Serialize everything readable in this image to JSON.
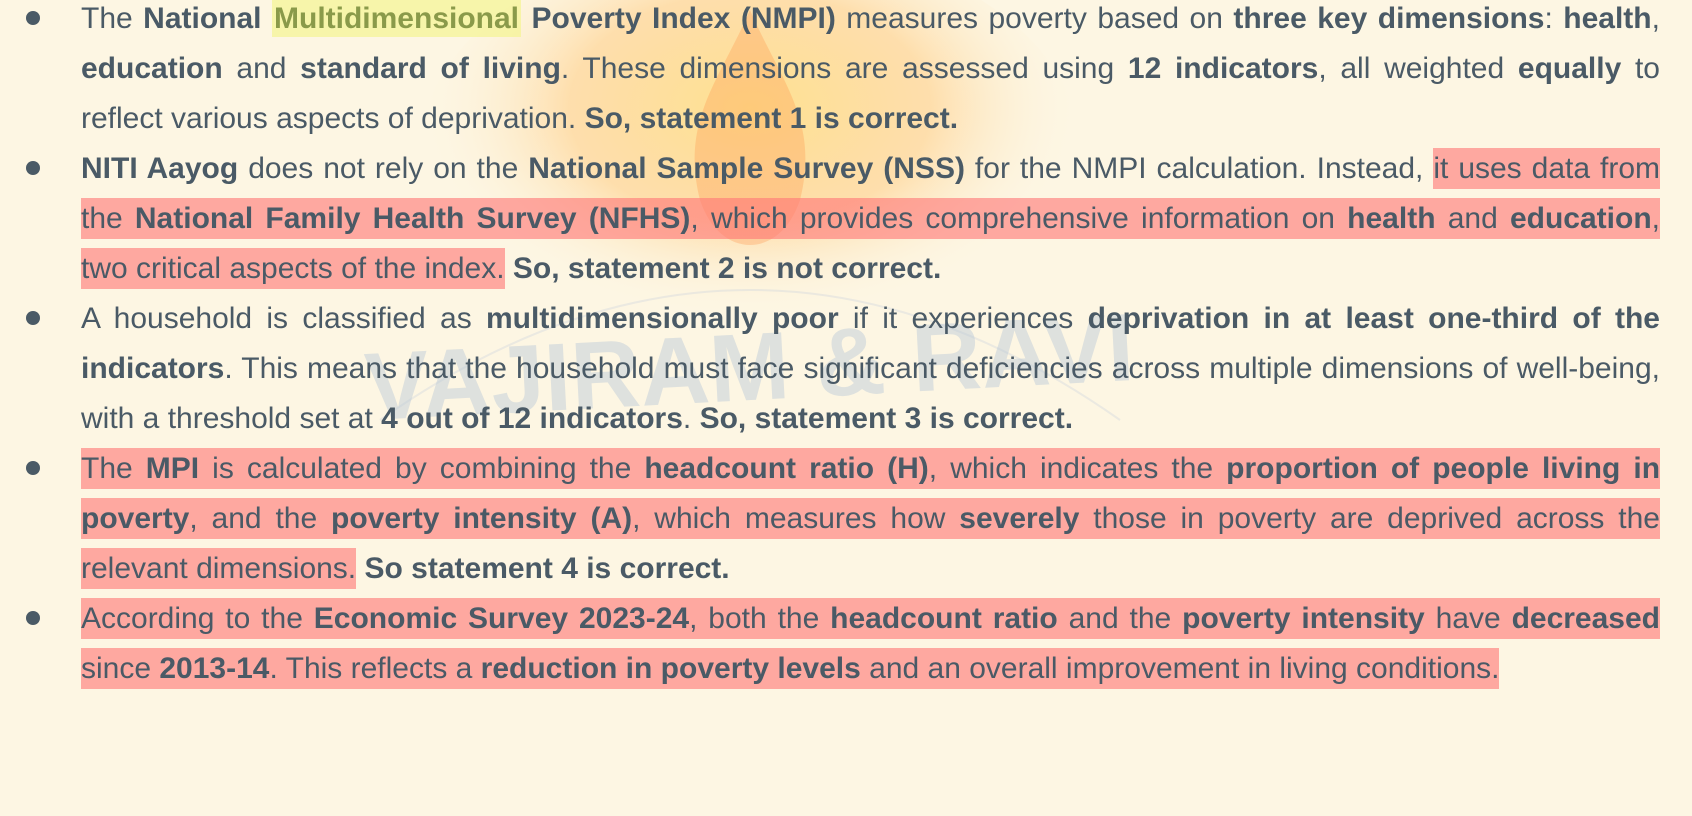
{
  "watermark": {
    "text": "VAJIRAM & RAVI",
    "color": "#b9c8d8"
  },
  "colors": {
    "background": "#fdf6e3",
    "text": "#4a5a66",
    "highlight_red": "#ff7878",
    "highlight_yellow": "#f5f58c"
  },
  "bullets": [
    {
      "segments": [
        {
          "t": "The ",
          "b": false,
          "hl": null
        },
        {
          "t": "National ",
          "b": true,
          "hl": null
        },
        {
          "t": "Multidimensional",
          "b": true,
          "hl": "yellow"
        },
        {
          "t": " Poverty Index (NMPI)",
          "b": true,
          "hl": null
        },
        {
          "t": " measures poverty based on ",
          "b": false,
          "hl": null
        },
        {
          "t": "three key dimensions",
          "b": true,
          "hl": null
        },
        {
          "t": ": ",
          "b": false,
          "hl": null
        },
        {
          "t": "health",
          "b": true,
          "hl": null
        },
        {
          "t": ", ",
          "b": false,
          "hl": null
        },
        {
          "t": "education",
          "b": true,
          "hl": null
        },
        {
          "t": " and ",
          "b": false,
          "hl": null
        },
        {
          "t": "standard of living",
          "b": true,
          "hl": null
        },
        {
          "t": ". These dimensions are assessed using ",
          "b": false,
          "hl": null
        },
        {
          "t": "12 indicators",
          "b": true,
          "hl": null
        },
        {
          "t": ", all weighted ",
          "b": false,
          "hl": null
        },
        {
          "t": "equally",
          "b": true,
          "hl": null
        },
        {
          "t": " to reflect various aspects of deprivation. ",
          "b": false,
          "hl": null
        },
        {
          "t": "So, statement 1 is correct.",
          "b": true,
          "hl": null
        }
      ]
    },
    {
      "segments": [
        {
          "t": "NITI Aayog",
          "b": true,
          "hl": null
        },
        {
          "t": " does not rely on the ",
          "b": false,
          "hl": null
        },
        {
          "t": "National Sample Survey (NSS)",
          "b": true,
          "hl": null
        },
        {
          "t": " for the NMPI calculation. Instead, ",
          "b": false,
          "hl": null
        },
        {
          "t": "it uses data from the ",
          "b": false,
          "hl": "red"
        },
        {
          "t": "National Family Health Survey (NFHS)",
          "b": true,
          "hl": "red"
        },
        {
          "t": ", which provides comprehensive information on ",
          "b": false,
          "hl": "red"
        },
        {
          "t": "health",
          "b": true,
          "hl": "red"
        },
        {
          "t": " and ",
          "b": false,
          "hl": "red"
        },
        {
          "t": "education",
          "b": true,
          "hl": "red"
        },
        {
          "t": ", two critical aspects of the index.",
          "b": false,
          "hl": "red"
        },
        {
          "t": " So, statement 2 is not correct.",
          "b": true,
          "hl": null
        }
      ]
    },
    {
      "segments": [
        {
          "t": "A household is classified as ",
          "b": false,
          "hl": null
        },
        {
          "t": "multidimensionally poor",
          "b": true,
          "hl": null
        },
        {
          "t": " if it experiences ",
          "b": false,
          "hl": null
        },
        {
          "t": "deprivation in at least one-third of the indicators",
          "b": true,
          "hl": null
        },
        {
          "t": ". This means that the household must face significant deficiencies across multiple dimensions of well-being, with a threshold set at ",
          "b": false,
          "hl": null
        },
        {
          "t": "4 out of 12 indicators",
          "b": true,
          "hl": null
        },
        {
          "t": ". ",
          "b": false,
          "hl": null
        },
        {
          "t": "So, statement 3 is correct.",
          "b": true,
          "hl": null
        }
      ]
    },
    {
      "segments": [
        {
          "t": "The ",
          "b": false,
          "hl": "red"
        },
        {
          "t": "MPI",
          "b": true,
          "hl": "red"
        },
        {
          "t": " is calculated by combining the ",
          "b": false,
          "hl": "red"
        },
        {
          "t": "headcount ratio (H)",
          "b": true,
          "hl": "red"
        },
        {
          "t": ", which indicates the ",
          "b": false,
          "hl": "red"
        },
        {
          "t": "proportion of people living in poverty",
          "b": true,
          "hl": "red"
        },
        {
          "t": ", and the ",
          "b": false,
          "hl": "red"
        },
        {
          "t": "poverty intensity (A)",
          "b": true,
          "hl": "red"
        },
        {
          "t": ", which measures how ",
          "b": false,
          "hl": "red"
        },
        {
          "t": "severely",
          "b": true,
          "hl": "red"
        },
        {
          "t": " those in poverty are deprived across the relevant dimensions.",
          "b": false,
          "hl": "red"
        },
        {
          "t": " So statement 4 is correct.",
          "b": true,
          "hl": null
        }
      ]
    },
    {
      "segments": [
        {
          "t": "According to the ",
          "b": false,
          "hl": "red"
        },
        {
          "t": "Economic Survey 2023-24",
          "b": true,
          "hl": "red"
        },
        {
          "t": ", both the ",
          "b": false,
          "hl": "red"
        },
        {
          "t": "headcount ratio",
          "b": true,
          "hl": "red"
        },
        {
          "t": " and the ",
          "b": false,
          "hl": "red"
        },
        {
          "t": "poverty intensity",
          "b": true,
          "hl": "red"
        },
        {
          "t": " have ",
          "b": false,
          "hl": "red"
        },
        {
          "t": "decreased",
          "b": true,
          "hl": "red"
        },
        {
          "t": " since ",
          "b": false,
          "hl": "red"
        },
        {
          "t": "2013-14",
          "b": true,
          "hl": "red"
        },
        {
          "t": ". This reflects a ",
          "b": false,
          "hl": "red"
        },
        {
          "t": "reduction in poverty levels",
          "b": true,
          "hl": "red"
        },
        {
          "t": " and an overall improvement in living conditions.",
          "b": false,
          "hl": "red"
        }
      ]
    }
  ]
}
